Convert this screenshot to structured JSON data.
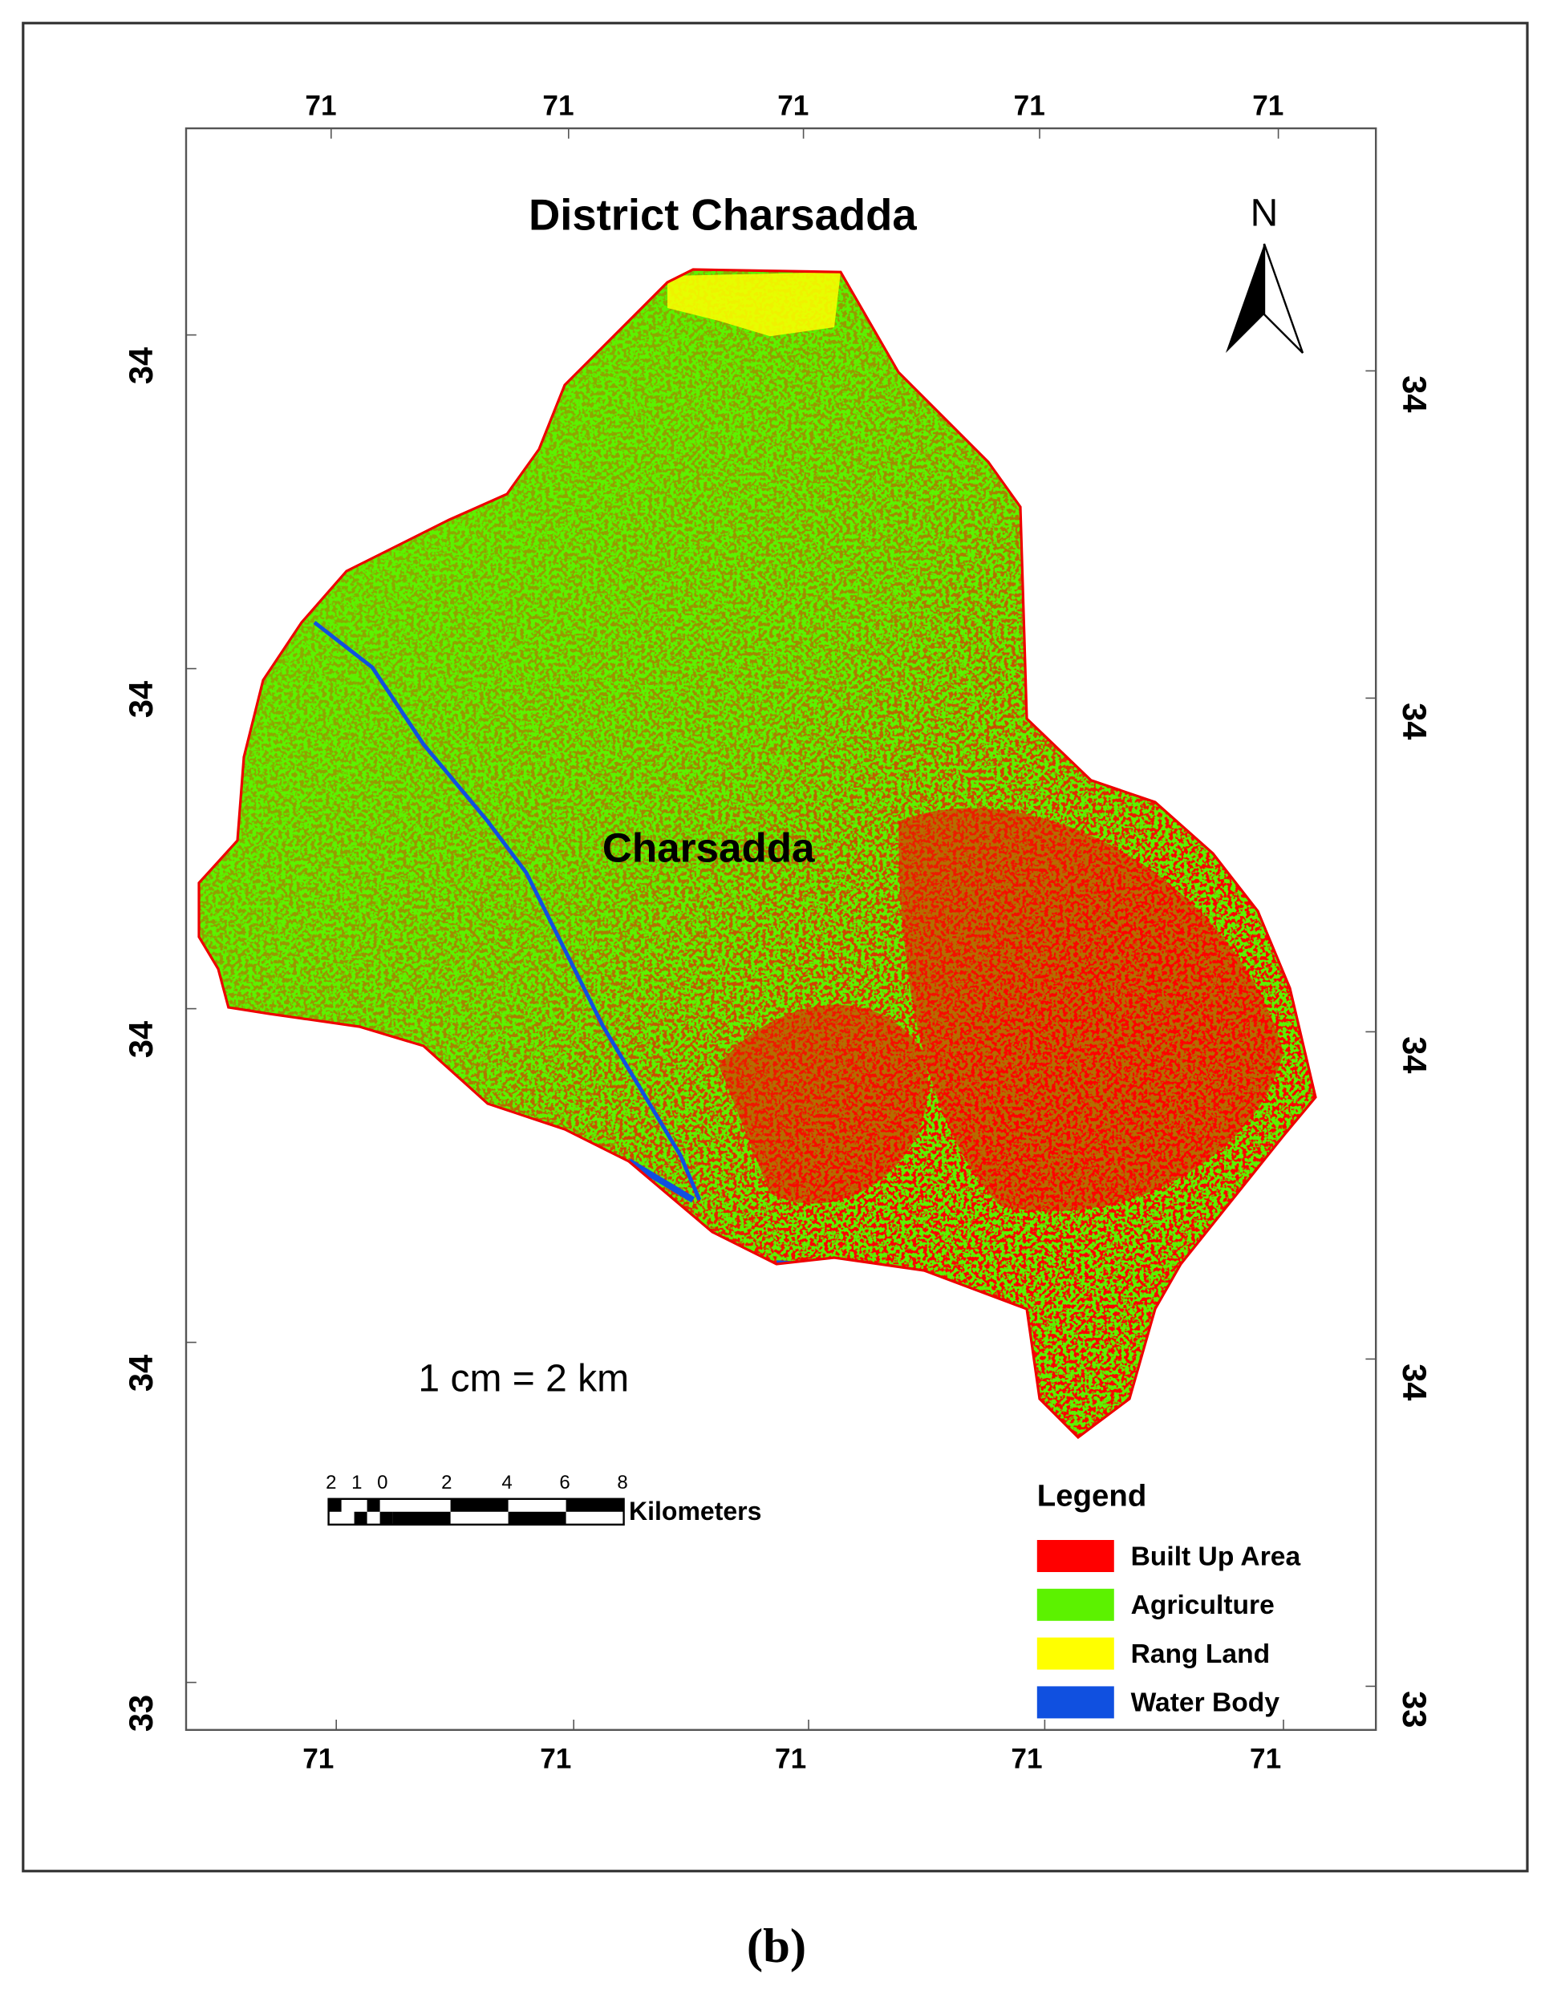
{
  "title": "District Charsadda",
  "north": "N",
  "place": "Charsadda",
  "scale_text": "1 cm = 2 km",
  "scale_bar": {
    "labels": [
      "2",
      "1",
      "0",
      "2",
      "4",
      "6",
      "8"
    ],
    "unit": "Kilometers"
  },
  "legend": {
    "title": "Legend",
    "items": [
      {
        "label": "Built Up Area",
        "color": "#ff0000"
      },
      {
        "label": "Agriculture",
        "color": "#5cf200"
      },
      {
        "label": "Rang Land",
        "color": "#ffff00"
      },
      {
        "label": "Water Body",
        "color": "#1050e0"
      }
    ]
  },
  "axes": {
    "top": [
      "71",
      "71",
      "71",
      "71",
      "71"
    ],
    "bottom": [
      "71",
      "71",
      "71",
      "71",
      "71"
    ],
    "left": [
      "34",
      "34",
      "34",
      "34",
      "33"
    ],
    "right": [
      "34",
      "34",
      "34",
      "34",
      "33"
    ]
  },
  "caption": "(b)"
}
